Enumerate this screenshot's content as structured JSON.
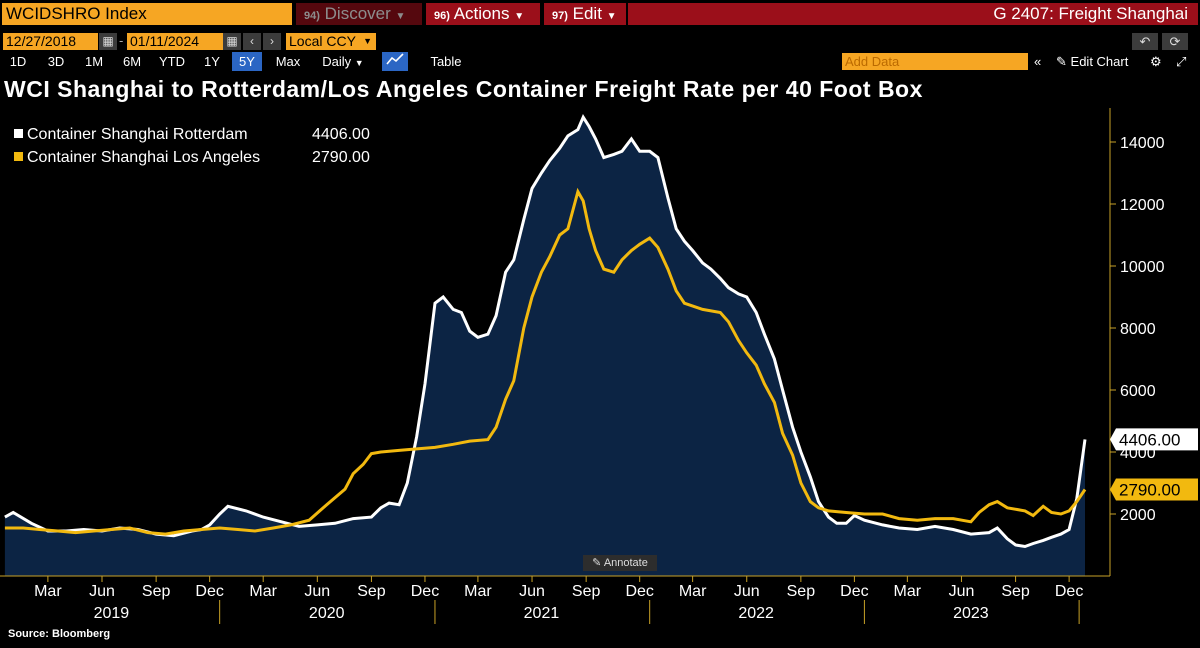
{
  "header": {
    "ticker": "WCIDSHRO Index",
    "discover_num": "94)",
    "discover_label": "Discover",
    "actions_num": "96)",
    "actions_label": "Actions",
    "edit_num": "97)",
    "edit_label": "Edit",
    "function_title": "G 2407: Freight Shanghai"
  },
  "toolbar": {
    "start_date": "12/27/2018",
    "end_date": "01/11/2024",
    "currency": "Local CCY",
    "periods": [
      "1D",
      "3D",
      "1M",
      "6M",
      "YTD",
      "1Y",
      "5Y",
      "Max"
    ],
    "active_period": "5Y",
    "frequency": "Daily",
    "table_label": "Table",
    "add_data_placeholder": "Add Data",
    "edit_chart_label": "Edit Chart"
  },
  "colors": {
    "orange": "#f6a623",
    "red": "#9b0f1a",
    "area_fill": "#0c2444",
    "rotterdam": "#ffffff",
    "los_angeles": "#f2b90f"
  },
  "annotate_label": "Annotate",
  "source": "Source: Bloomberg",
  "chart_data": {
    "type": "line",
    "title": "WCI Shanghai to Rotterdam/Los Angeles Container Freight Rate per 40 Foot Box",
    "x_start": "2018-12-27",
    "x_end": "2024-01-11",
    "ylim": [
      0,
      15000
    ],
    "yticks": [
      2000,
      4000,
      6000,
      8000,
      10000,
      12000,
      14000
    ],
    "month_labels": [
      "Mar",
      "Jun",
      "Sep",
      "Dec",
      "Mar",
      "Jun",
      "Sep",
      "Dec",
      "Mar",
      "Jun",
      "Sep",
      "Dec",
      "Mar",
      "Jun",
      "Sep",
      "Dec",
      "Mar",
      "Jun",
      "Sep",
      "Dec"
    ],
    "year_labels": [
      "2019",
      "2020",
      "2021",
      "2022",
      "2023"
    ],
    "series": [
      {
        "name": "Container Shanghai Rotterdam",
        "last_value": "4406.00",
        "style": "white-line-with-area",
        "points": [
          [
            "2019-01-01",
            1900
          ],
          [
            "2019-01-15",
            2050
          ],
          [
            "2019-02-15",
            1700
          ],
          [
            "2019-03-15",
            1450
          ],
          [
            "2019-04-15",
            1450
          ],
          [
            "2019-05-15",
            1500
          ],
          [
            "2019-06-15",
            1450
          ],
          [
            "2019-07-15",
            1550
          ],
          [
            "2019-08-15",
            1500
          ],
          [
            "2019-09-15",
            1350
          ],
          [
            "2019-10-15",
            1300
          ],
          [
            "2019-11-15",
            1450
          ],
          [
            "2019-12-01",
            1500
          ],
          [
            "2019-12-15",
            1650
          ],
          [
            "2020-01-01",
            2000
          ],
          [
            "2020-01-15",
            2250
          ],
          [
            "2020-02-15",
            2100
          ],
          [
            "2020-03-15",
            1900
          ],
          [
            "2020-04-15",
            1750
          ],
          [
            "2020-05-15",
            1600
          ],
          [
            "2020-06-15",
            1650
          ],
          [
            "2020-07-15",
            1700
          ],
          [
            "2020-08-15",
            1850
          ],
          [
            "2020-09-15",
            1900
          ],
          [
            "2020-10-01",
            2200
          ],
          [
            "2020-10-15",
            2350
          ],
          [
            "2020-11-01",
            2300
          ],
          [
            "2020-11-15",
            3000
          ],
          [
            "2020-12-01",
            4500
          ],
          [
            "2020-12-15",
            6200
          ],
          [
            "2021-01-01",
            8800
          ],
          [
            "2021-01-15",
            9000
          ],
          [
            "2021-02-01",
            8600
          ],
          [
            "2021-02-15",
            8500
          ],
          [
            "2021-03-01",
            7900
          ],
          [
            "2021-03-15",
            7700
          ],
          [
            "2021-04-01",
            7800
          ],
          [
            "2021-04-15",
            8400
          ],
          [
            "2021-05-01",
            9800
          ],
          [
            "2021-05-15",
            10200
          ],
          [
            "2021-06-01",
            11500
          ],
          [
            "2021-06-15",
            12500
          ],
          [
            "2021-07-01",
            13000
          ],
          [
            "2021-07-15",
            13400
          ],
          [
            "2021-08-01",
            13800
          ],
          [
            "2021-08-15",
            14200
          ],
          [
            "2021-09-01",
            14400
          ],
          [
            "2021-09-10",
            14800
          ],
          [
            "2021-09-20",
            14500
          ],
          [
            "2021-10-01",
            14100
          ],
          [
            "2021-10-15",
            13500
          ],
          [
            "2021-11-01",
            13600
          ],
          [
            "2021-11-15",
            13700
          ],
          [
            "2021-12-01",
            14100
          ],
          [
            "2021-12-15",
            13700
          ],
          [
            "2022-01-01",
            13700
          ],
          [
            "2022-01-15",
            13500
          ],
          [
            "2022-02-01",
            12200
          ],
          [
            "2022-02-15",
            11200
          ],
          [
            "2022-03-01",
            10800
          ],
          [
            "2022-03-15",
            10500
          ],
          [
            "2022-04-01",
            10100
          ],
          [
            "2022-04-15",
            9900
          ],
          [
            "2022-05-01",
            9600
          ],
          [
            "2022-05-15",
            9300
          ],
          [
            "2022-06-01",
            9100
          ],
          [
            "2022-06-15",
            9000
          ],
          [
            "2022-07-01",
            8500
          ],
          [
            "2022-07-15",
            7800
          ],
          [
            "2022-08-01",
            7000
          ],
          [
            "2022-08-15",
            6000
          ],
          [
            "2022-09-01",
            4800
          ],
          [
            "2022-09-15",
            4000
          ],
          [
            "2022-10-01",
            3200
          ],
          [
            "2022-10-15",
            2400
          ],
          [
            "2022-11-01",
            1900
          ],
          [
            "2022-11-15",
            1700
          ],
          [
            "2022-12-01",
            1700
          ],
          [
            "2022-12-15",
            1950
          ],
          [
            "2023-01-01",
            1800
          ],
          [
            "2023-02-01",
            1650
          ],
          [
            "2023-03-01",
            1550
          ],
          [
            "2023-04-01",
            1500
          ],
          [
            "2023-05-01",
            1600
          ],
          [
            "2023-06-01",
            1500
          ],
          [
            "2023-07-01",
            1350
          ],
          [
            "2023-08-01",
            1400
          ],
          [
            "2023-08-15",
            1550
          ],
          [
            "2023-09-01",
            1200
          ],
          [
            "2023-09-15",
            1000
          ],
          [
            "2023-10-01",
            950
          ],
          [
            "2023-10-15",
            1050
          ],
          [
            "2023-11-01",
            1150
          ],
          [
            "2023-11-15",
            1250
          ],
          [
            "2023-12-01",
            1350
          ],
          [
            "2023-12-15",
            1500
          ],
          [
            "2023-12-28",
            2500
          ],
          [
            "2024-01-11",
            4406
          ]
        ]
      },
      {
        "name": "Container Shanghai Los Angeles",
        "last_value": "2790.00",
        "style": "yellow-line",
        "points": [
          [
            "2019-01-01",
            1550
          ],
          [
            "2019-02-01",
            1550
          ],
          [
            "2019-03-01",
            1500
          ],
          [
            "2019-04-01",
            1450
          ],
          [
            "2019-05-01",
            1400
          ],
          [
            "2019-06-01",
            1450
          ],
          [
            "2019-07-01",
            1500
          ],
          [
            "2019-08-01",
            1550
          ],
          [
            "2019-09-01",
            1400
          ],
          [
            "2019-10-01",
            1350
          ],
          [
            "2019-11-01",
            1450
          ],
          [
            "2019-12-01",
            1500
          ],
          [
            "2020-01-01",
            1550
          ],
          [
            "2020-02-01",
            1500
          ],
          [
            "2020-03-01",
            1450
          ],
          [
            "2020-04-01",
            1550
          ],
          [
            "2020-05-01",
            1650
          ],
          [
            "2020-06-01",
            1800
          ],
          [
            "2020-07-01",
            2300
          ],
          [
            "2020-08-01",
            2800
          ],
          [
            "2020-08-15",
            3300
          ],
          [
            "2020-09-01",
            3600
          ],
          [
            "2020-09-15",
            3950
          ],
          [
            "2020-10-01",
            4000
          ],
          [
            "2020-11-01",
            4050
          ],
          [
            "2020-12-01",
            4100
          ],
          [
            "2021-01-01",
            4150
          ],
          [
            "2021-02-01",
            4250
          ],
          [
            "2021-03-01",
            4350
          ],
          [
            "2021-04-01",
            4400
          ],
          [
            "2021-04-15",
            4800
          ],
          [
            "2021-05-01",
            5700
          ],
          [
            "2021-05-15",
            6300
          ],
          [
            "2021-06-01",
            8000
          ],
          [
            "2021-06-15",
            9000
          ],
          [
            "2021-07-01",
            9800
          ],
          [
            "2021-07-15",
            10300
          ],
          [
            "2021-08-01",
            11000
          ],
          [
            "2021-08-15",
            11200
          ],
          [
            "2021-09-01",
            12400
          ],
          [
            "2021-09-10",
            12100
          ],
          [
            "2021-09-20",
            11200
          ],
          [
            "2021-10-01",
            10500
          ],
          [
            "2021-10-15",
            9900
          ],
          [
            "2021-11-01",
            9800
          ],
          [
            "2021-11-15",
            10200
          ],
          [
            "2021-12-01",
            10500
          ],
          [
            "2021-12-15",
            10700
          ],
          [
            "2022-01-01",
            10900
          ],
          [
            "2022-01-15",
            10600
          ],
          [
            "2022-02-01",
            9900
          ],
          [
            "2022-02-15",
            9200
          ],
          [
            "2022-03-01",
            8800
          ],
          [
            "2022-04-01",
            8600
          ],
          [
            "2022-05-01",
            8500
          ],
          [
            "2022-05-15",
            8200
          ],
          [
            "2022-06-01",
            7600
          ],
          [
            "2022-06-15",
            7200
          ],
          [
            "2022-07-01",
            6800
          ],
          [
            "2022-07-15",
            6200
          ],
          [
            "2022-08-01",
            5600
          ],
          [
            "2022-08-15",
            4600
          ],
          [
            "2022-09-01",
            3900
          ],
          [
            "2022-09-15",
            3000
          ],
          [
            "2022-10-01",
            2400
          ],
          [
            "2022-10-15",
            2200
          ],
          [
            "2022-11-01",
            2100
          ],
          [
            "2022-12-01",
            2050
          ],
          [
            "2023-01-01",
            2000
          ],
          [
            "2023-02-01",
            2000
          ],
          [
            "2023-03-01",
            1850
          ],
          [
            "2023-04-01",
            1800
          ],
          [
            "2023-05-01",
            1850
          ],
          [
            "2023-06-01",
            1850
          ],
          [
            "2023-07-01",
            1750
          ],
          [
            "2023-07-15",
            2050
          ],
          [
            "2023-08-01",
            2300
          ],
          [
            "2023-08-15",
            2400
          ],
          [
            "2023-09-01",
            2200
          ],
          [
            "2023-10-01",
            2100
          ],
          [
            "2023-10-15",
            1950
          ],
          [
            "2023-11-01",
            2250
          ],
          [
            "2023-11-15",
            2050
          ],
          [
            "2023-12-01",
            2000
          ],
          [
            "2023-12-15",
            2100
          ],
          [
            "2023-12-28",
            2400
          ],
          [
            "2024-01-11",
            2790
          ]
        ]
      }
    ]
  }
}
